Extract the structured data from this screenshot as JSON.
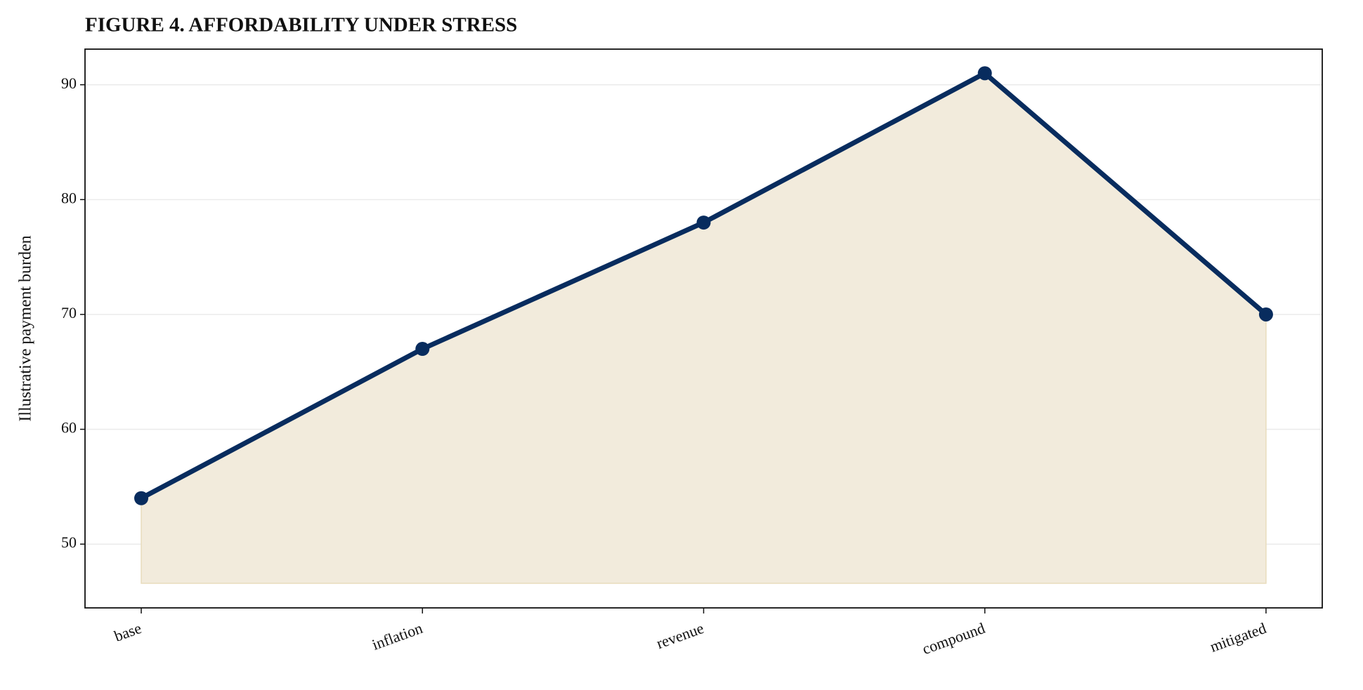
{
  "chart_data": {
    "type": "line",
    "title": "FIGURE 4. AFFORDABILITY UNDER STRESS",
    "y_label": "Illustrative payment burden",
    "categories": [
      "base",
      "inflation",
      "revenue",
      "compound",
      "mitigated"
    ],
    "values": [
      54,
      67,
      78,
      91,
      70
    ],
    "color": "#082c5e",
    "fill_color": "#f2ebdc",
    "ylim": [
      44.45,
      93.1
    ],
    "yticks": [
      50,
      60,
      70,
      80,
      90
    ],
    "grid": true
  }
}
